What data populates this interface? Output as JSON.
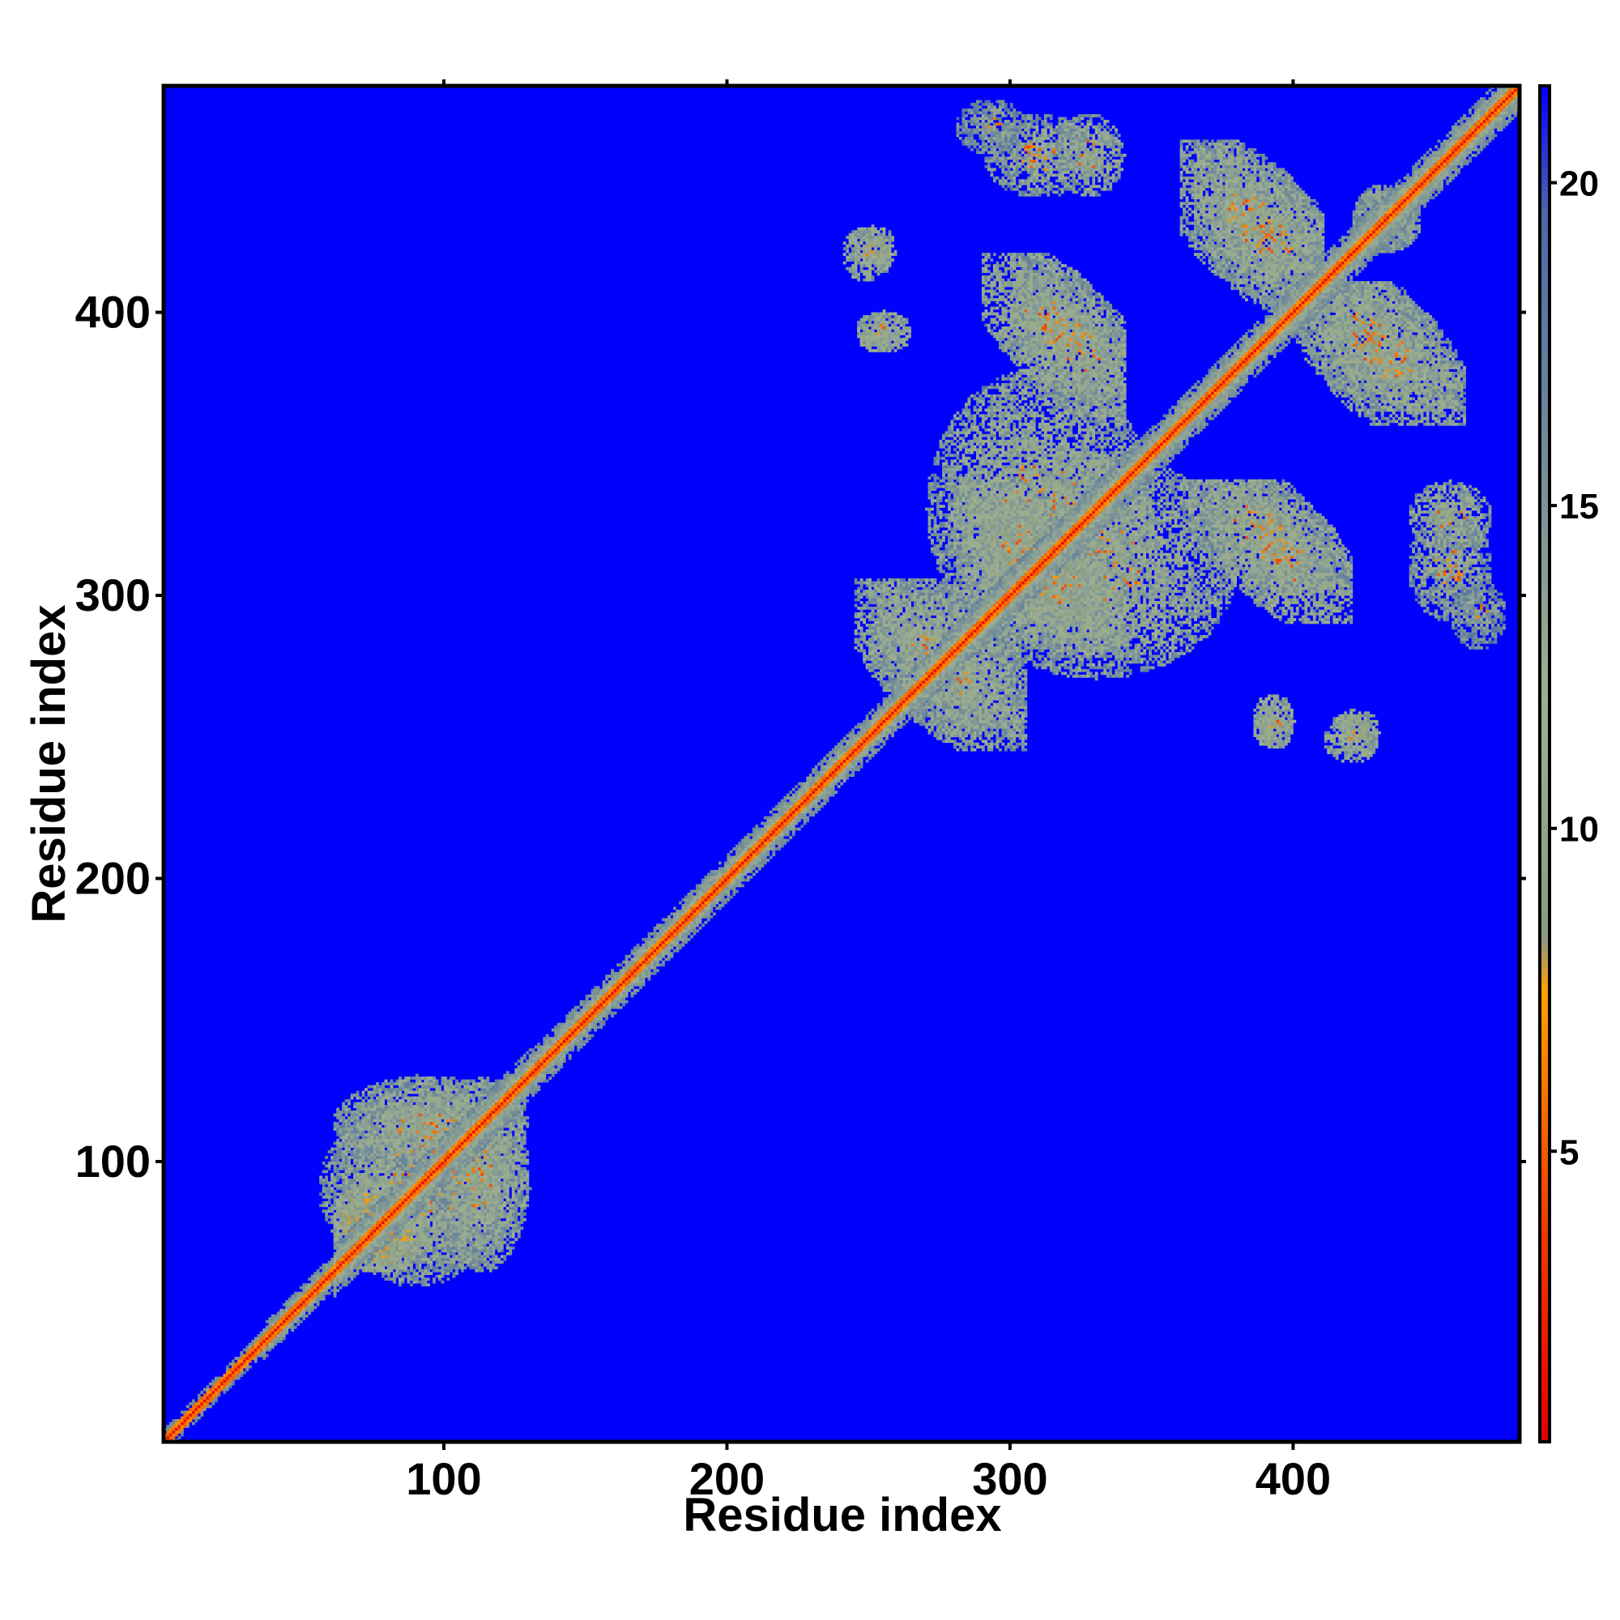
{
  "chart_data": {
    "type": "heatmap",
    "xlabel": "Residue index",
    "ylabel": "Residue index",
    "xlim": [
      1,
      480
    ],
    "ylim": [
      1,
      480
    ],
    "x_ticks": [
      100,
      200,
      300,
      400
    ],
    "y_ticks": [
      100,
      200,
      300,
      400
    ],
    "colorbar": {
      "range": [
        0.5,
        21.5
      ],
      "ticks": [
        5,
        10,
        15,
        20
      ],
      "stops": [
        {
          "value": 0.5,
          "color": "#e00000"
        },
        {
          "value": 4.0,
          "color": "#f04000"
        },
        {
          "value": 7.5,
          "color": "#ffa000"
        },
        {
          "value": 8.3,
          "color": "#8a9a80"
        },
        {
          "value": 12.0,
          "color": "#9fb090"
        },
        {
          "value": 16.0,
          "color": "#6f8a9a"
        },
        {
          "value": 19.5,
          "color": "#4a6aa8"
        },
        {
          "value": 21.5,
          "color": "#0000ff"
        }
      ]
    },
    "background_value": 21.5,
    "diagonal": {
      "core_value": 1.5,
      "mid_value": 5.0,
      "halo_value": 11.0
    },
    "diagonal_thickness": [
      {
        "range": [
          1,
          35
        ],
        "halo": 4
      },
      {
        "range": [
          35,
          60
        ],
        "halo": 6
      },
      {
        "range": [
          60,
          130
        ],
        "halo": 9
      },
      {
        "range": [
          130,
          275
        ],
        "halo": 8
      },
      {
        "range": [
          275,
          480
        ],
        "halo": 9
      }
    ],
    "contact_regions": [
      {
        "x": [
          55,
          130
        ],
        "y": [
          60,
          120
        ],
        "value": 11
      },
      {
        "x": [
          60,
          95
        ],
        "y": [
          60,
          90
        ],
        "value": 8
      },
      {
        "x": [
          95,
          130
        ],
        "y": [
          60,
          130
        ],
        "value": 11
      },
      {
        "x": [
          245,
          305
        ],
        "y": [
          250,
          305
        ],
        "value": 11,
        "shape": "antidiag"
      },
      {
        "x": [
          280,
          380
        ],
        "y": [
          270,
          350
        ],
        "value": 11
      },
      {
        "x": [
          290,
          340
        ],
        "y": [
          280,
          330
        ],
        "value": 10,
        "shape": "antidiag"
      },
      {
        "x": [
          370,
          420
        ],
        "y": [
          290,
          340
        ],
        "value": 10,
        "shape": "antidiag"
      },
      {
        "x": [
          440,
          470
        ],
        "y": [
          290,
          330
        ],
        "value": 12
      },
      {
        "x": [
          385,
          400
        ],
        "y": [
          245,
          265
        ],
        "value": 10
      },
      {
        "x": [
          410,
          430
        ],
        "y": [
          240,
          258
        ],
        "value": 10
      },
      {
        "x": [
          300,
          340
        ],
        "y": [
          360,
          420
        ],
        "value": 11,
        "shape": "antidiag"
      },
      {
        "x": [
          400,
          460
        ],
        "y": [
          360,
          410
        ],
        "value": 11,
        "shape": "antidiag"
      },
      {
        "x": [
          365,
          410
        ],
        "y": [
          400,
          460
        ],
        "value": 11,
        "shape": "antidiag"
      },
      {
        "x": [
          245,
          262
        ],
        "y": [
          385,
          400
        ],
        "value": 10
      },
      {
        "x": [
          242,
          260
        ],
        "y": [
          415,
          430
        ],
        "value": 10
      },
      {
        "x": [
          280,
          305
        ],
        "y": [
          455,
          475
        ],
        "value": 13
      },
      {
        "x": [
          315,
          340
        ],
        "y": [
          440,
          470
        ],
        "value": 11
      },
      {
        "x": [
          420,
          445
        ],
        "y": [
          420,
          445
        ],
        "value": 11
      }
    ]
  }
}
